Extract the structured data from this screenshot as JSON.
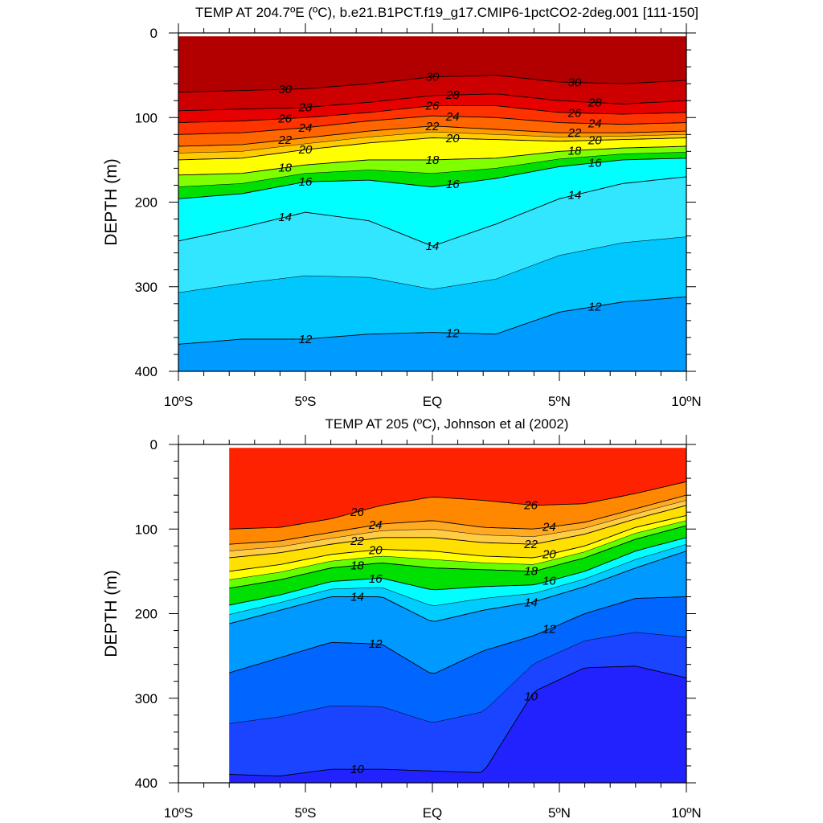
{
  "chart_data": [
    {
      "type": "contour",
      "title": "TEMP AT 204.7ºE (ºC), b.e21.B1PCT.f19_g17.CMIP6-1pctCO2-2deg.001 [111-150]",
      "ylabel": "DEPTH (m)",
      "x_ticklabels": [
        "10ºS",
        "5ºS",
        "EQ",
        "5ºN",
        "10ºN"
      ],
      "x_ticks": [
        -10,
        -5,
        0,
        5,
        10
      ],
      "y_ticks": [
        0,
        100,
        200,
        300,
        400
      ],
      "xlim": [
        -10,
        10
      ],
      "ylim": [
        400,
        0
      ],
      "data_xlim": [
        -10,
        10
      ],
      "contour_levels": [
        30,
        28,
        26,
        24,
        22,
        20,
        18,
        16,
        14,
        12
      ],
      "x": [
        -10,
        -7.5,
        -5,
        -2.5,
        0,
        2.5,
        5,
        7.5,
        10
      ],
      "isotherm_depths": [
        {
          "level": 30,
          "values": [
            70,
            68,
            66,
            60,
            52,
            50,
            58,
            60,
            56
          ]
        },
        {
          "level": 28,
          "values": [
            92,
            90,
            88,
            82,
            74,
            72,
            80,
            84,
            80
          ]
        },
        {
          "level": 26,
          "values": [
            106,
            104,
            100,
            94,
            86,
            86,
            94,
            96,
            94
          ]
        },
        {
          "level": 24,
          "values": [
            120,
            118,
            112,
            104,
            98,
            100,
            106,
            108,
            106
          ]
        },
        {
          "level": 22,
          "values": [
            134,
            132,
            124,
            116,
            110,
            114,
            118,
            118,
            116
          ]
        },
        {
          "level": 20,
          "values": [
            150,
            148,
            138,
            130,
            124,
            126,
            128,
            126,
            124
          ]
        },
        {
          "level": 18,
          "values": [
            168,
            166,
            156,
            150,
            150,
            148,
            140,
            136,
            134
          ]
        },
        {
          "level": 16,
          "values": [
            196,
            190,
            176,
            174,
            182,
            172,
            158,
            150,
            148
          ]
        },
        {
          "level": 14,
          "values": [
            246,
            230,
            212,
            222,
            252,
            226,
            196,
            178,
            170
          ]
        },
        {
          "level": 12,
          "values": [
            368,
            362,
            362,
            356,
            354,
            356,
            330,
            318,
            312
          ]
        }
      ],
      "colors": [
        "#b20000",
        "#cc0000",
        "#e60000",
        "#ff3300",
        "#ff6600",
        "#ff9900",
        "#ffcc00",
        "#ffff00",
        "#80ff00",
        "#00e000",
        "#00ffff",
        "#33e6ff",
        "#00c8ff",
        "#009bff"
      ]
    },
    {
      "type": "contour",
      "title": "TEMP AT 205 (ºC), Johnson et al (2002)",
      "ylabel": "DEPTH (m)",
      "x_ticklabels": [
        "10ºS",
        "5ºS",
        "EQ",
        "5ºN",
        "10ºN"
      ],
      "x_ticks": [
        -10,
        -5,
        0,
        5,
        10
      ],
      "y_ticks": [
        0,
        100,
        200,
        300,
        400
      ],
      "xlim": [
        -10,
        10
      ],
      "ylim": [
        400,
        0
      ],
      "data_xlim": [
        -8,
        10
      ],
      "contour_levels": [
        26,
        24,
        22,
        20,
        18,
        16,
        14,
        12,
        10
      ],
      "x": [
        -8,
        -6,
        -4,
        -2,
        0,
        2,
        4,
        6,
        8,
        10
      ],
      "isotherm_depths": [
        {
          "level": 26,
          "values": [
            100,
            98,
            88,
            72,
            62,
            66,
            72,
            70,
            58,
            44
          ]
        },
        {
          "level": 24,
          "values": [
            118,
            114,
            104,
            94,
            90,
            98,
            100,
            92,
            76,
            60
          ]
        },
        {
          "level": 22,
          "values": [
            134,
            128,
            118,
            110,
            110,
            116,
            118,
            106,
            88,
            72
          ]
        },
        {
          "level": 20,
          "values": [
            150,
            142,
            130,
            124,
            126,
            132,
            134,
            120,
            98,
            84
          ]
        },
        {
          "level": 18,
          "values": [
            170,
            160,
            146,
            140,
            146,
            148,
            150,
            134,
            112,
            96
          ]
        },
        {
          "level": 16,
          "values": [
            190,
            178,
            162,
            158,
            172,
            168,
            166,
            150,
            126,
            110
          ]
        },
        {
          "level": 14,
          "values": [
            212,
            196,
            180,
            180,
            210,
            196,
            186,
            168,
            146,
            126
          ]
        },
        {
          "level": 12,
          "values": [
            270,
            252,
            234,
            236,
            272,
            244,
            226,
            200,
            182,
            180
          ]
        },
        {
          "level": 10,
          "values": [
            390,
            392,
            384,
            384,
            386,
            388,
            292,
            264,
            262,
            276
          ]
        }
      ],
      "colors": [
        "#ff2200",
        "#ff8800",
        "#ffaa22",
        "#ffcc44",
        "#ffe000",
        "#ffff00",
        "#66ff00",
        "#00e000",
        "#00ffff",
        "#00ccff",
        "#0099ff",
        "#0066ff",
        "#1a44ff",
        "#2222ff"
      ]
    }
  ]
}
